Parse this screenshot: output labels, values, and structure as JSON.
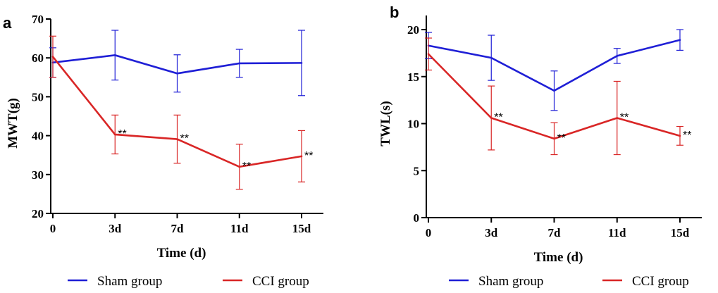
{
  "chart_data": [
    {
      "panel": "a",
      "type": "line",
      "xlabel": "Time (d)",
      "ylabel": "MWT(g)",
      "categories": [
        "0",
        "3d",
        "7d",
        "11d",
        "15d"
      ],
      "ylim": [
        20,
        70
      ],
      "yticks": [
        "20",
        "30",
        "40",
        "50",
        "60",
        "70"
      ],
      "series": [
        {
          "name": "Sham group",
          "color": "#1f1fd6",
          "values": [
            58.8,
            60.7,
            56.0,
            58.6,
            58.7
          ],
          "err": [
            3.8,
            6.4,
            4.8,
            3.6,
            8.4
          ]
        },
        {
          "name": "CCI group",
          "color": "#d92626",
          "values": [
            60.3,
            40.3,
            39.1,
            32.0,
            34.7
          ],
          "err": [
            5.3,
            5.0,
            6.2,
            5.8,
            6.6
          ],
          "annotations": [
            "",
            "**",
            "**",
            "**",
            "**"
          ]
        }
      ],
      "legend": "bottom"
    },
    {
      "panel": "b",
      "type": "line",
      "xlabel": "Time (d)",
      "ylabel": "TWL(s)",
      "categories": [
        "0",
        "3d",
        "7d",
        "11d",
        "15d"
      ],
      "ylim": [
        0,
        21.5
      ],
      "yticks": [
        "0",
        "5",
        "10",
        "15",
        "20"
      ],
      "series": [
        {
          "name": "Sham group",
          "color": "#1f1fd6",
          "values": [
            18.3,
            17.0,
            13.5,
            17.2,
            18.9
          ],
          "err": [
            1.4,
            2.4,
            2.1,
            0.8,
            1.1
          ]
        },
        {
          "name": "CCI group",
          "color": "#d92626",
          "values": [
            17.4,
            10.6,
            8.4,
            10.6,
            8.7
          ],
          "err": [
            1.7,
            3.4,
            1.7,
            3.9,
            1.0
          ],
          "annotations": [
            "",
            "**",
            "**",
            "**",
            "**"
          ]
        }
      ],
      "legend": "bottom"
    }
  ]
}
